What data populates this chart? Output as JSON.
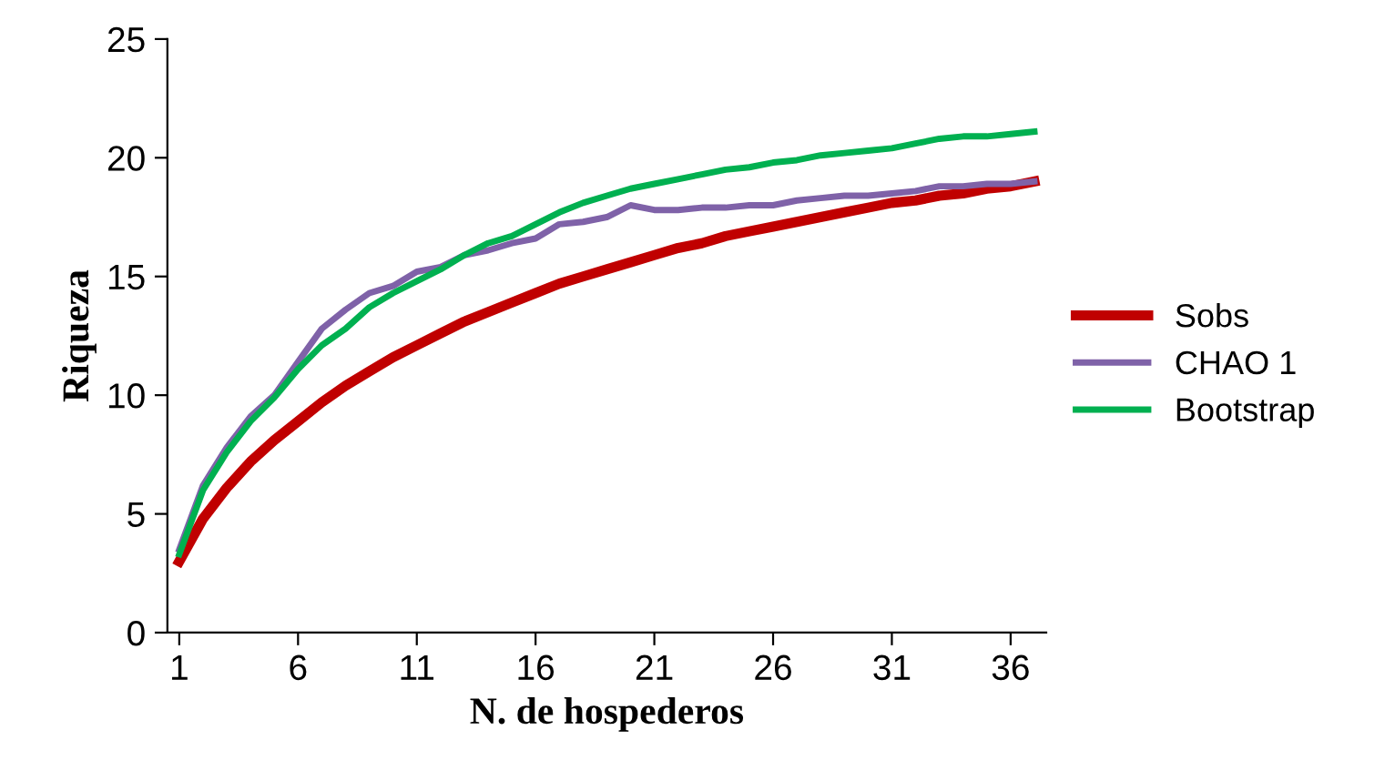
{
  "chart_data": {
    "type": "line",
    "xlabel": "N. de hospederos",
    "ylabel": "Riqueza",
    "x": [
      1,
      2,
      3,
      4,
      5,
      6,
      7,
      8,
      9,
      10,
      11,
      12,
      13,
      14,
      15,
      16,
      17,
      18,
      19,
      20,
      21,
      22,
      23,
      24,
      25,
      26,
      27,
      28,
      29,
      30,
      31,
      32,
      33,
      34,
      35,
      36,
      37
    ],
    "xlim": [
      0.5,
      37.5
    ],
    "xticks": [
      1,
      6,
      11,
      16,
      21,
      26,
      31,
      36
    ],
    "ylim": [
      0,
      25
    ],
    "yticks": [
      0,
      5,
      10,
      15,
      20,
      25
    ],
    "grid": false,
    "legend": "right",
    "marker": "none",
    "line_style": "solid",
    "series": [
      {
        "name": "Sobs",
        "color": "#c00000",
        "values": [
          3,
          4.8,
          6.1,
          7.2,
          8.1,
          8.9,
          9.7,
          10.4,
          11,
          11.6,
          12.1,
          12.6,
          13.1,
          13.5,
          13.9,
          14.3,
          14.7,
          15,
          15.3,
          15.6,
          15.9,
          16.2,
          16.4,
          16.7,
          16.9,
          17.1,
          17.3,
          17.5,
          17.7,
          17.9,
          18.1,
          18.2,
          18.4,
          18.5,
          18.7,
          18.8,
          19.0
        ]
      },
      {
        "name": "CHAO 1",
        "color": "#7f62a8",
        "values": [
          3.5,
          6.2,
          7.8,
          9.1,
          10,
          11.4,
          12.8,
          13.6,
          14.3,
          14.6,
          15.2,
          15.4,
          15.9,
          16.1,
          16.4,
          16.6,
          17.2,
          17.3,
          17.5,
          18,
          17.8,
          17.8,
          17.9,
          17.9,
          18,
          18,
          18.2,
          18.3,
          18.4,
          18.4,
          18.5,
          18.6,
          18.8,
          18.8,
          18.9,
          18.9,
          19.0
        ]
      },
      {
        "name": "Bootstrap",
        "color": "#00b050",
        "values": [
          3.3,
          6,
          7.6,
          8.9,
          9.9,
          11.1,
          12.1,
          12.8,
          13.7,
          14.3,
          14.8,
          15.3,
          15.9,
          16.4,
          16.7,
          17.2,
          17.7,
          18.1,
          18.4,
          18.7,
          18.9,
          19.1,
          19.3,
          19.5,
          19.6,
          19.8,
          19.9,
          20.1,
          20.2,
          20.3,
          20.4,
          20.6,
          20.8,
          20.9,
          20.9,
          21,
          21.1
        ]
      }
    ]
  }
}
